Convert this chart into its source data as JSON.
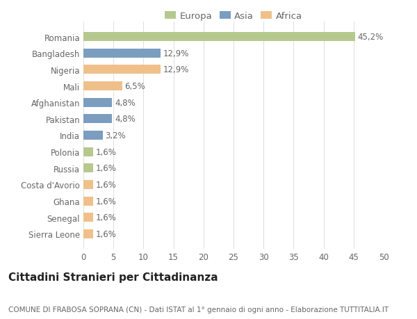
{
  "categories": [
    "Romania",
    "Bangladesh",
    "Nigeria",
    "Mali",
    "Afghanistan",
    "Pakistan",
    "India",
    "Polonia",
    "Russia",
    "Costa d'Avorio",
    "Ghana",
    "Senegal",
    "Sierra Leone"
  ],
  "values": [
    45.2,
    12.9,
    12.9,
    6.5,
    4.8,
    4.8,
    3.2,
    1.6,
    1.6,
    1.6,
    1.6,
    1.6,
    1.6
  ],
  "labels": [
    "45,2%",
    "12,9%",
    "12,9%",
    "6,5%",
    "4,8%",
    "4,8%",
    "3,2%",
    "1,6%",
    "1,6%",
    "1,6%",
    "1,6%",
    "1,6%",
    "1,6%"
  ],
  "continents": [
    "Europa",
    "Asia",
    "Africa",
    "Africa",
    "Asia",
    "Asia",
    "Asia",
    "Europa",
    "Europa",
    "Africa",
    "Africa",
    "Africa",
    "Africa"
  ],
  "colors": {
    "Europa": "#b5c98e",
    "Asia": "#7b9dc0",
    "Africa": "#f0c08a"
  },
  "xlim": [
    0,
    50
  ],
  "xticks": [
    0,
    5,
    10,
    15,
    20,
    25,
    30,
    35,
    40,
    45,
    50
  ],
  "title": "Cittadini Stranieri per Cittadinanza",
  "subtitle": "COMUNE DI FRABOSA SOPRANA (CN) - Dati ISTAT al 1° gennaio di ogni anno - Elaborazione TUTTITALIA.IT",
  "background_color": "#ffffff",
  "grid_color": "#e0e0e0",
  "bar_height": 0.55,
  "label_fontsize": 8.5,
  "tick_fontsize": 8.5,
  "title_fontsize": 11,
  "subtitle_fontsize": 7.5,
  "legend_fontsize": 9.5
}
